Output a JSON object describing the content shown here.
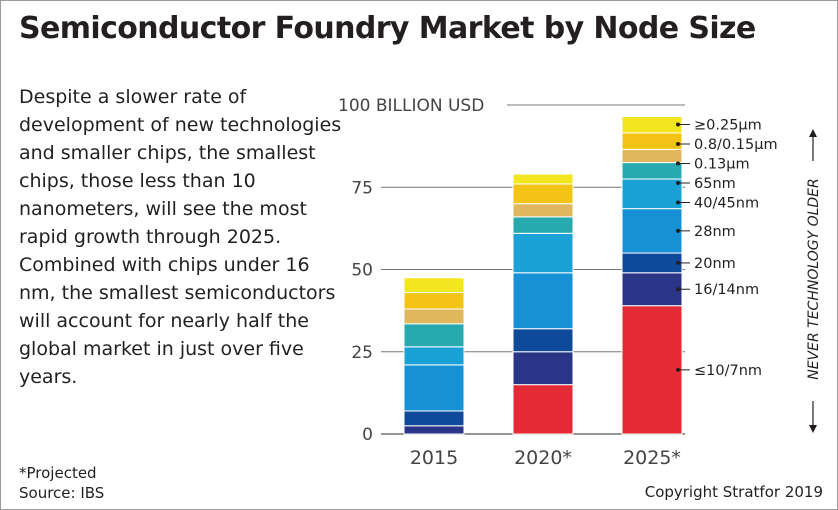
{
  "title": "Semiconductor Foundry Market by Node Size",
  "description": "Despite a slower rate of development of new technologies and smaller chips, the smallest chips, those less than 10 nanometers, will see the most rapid growth through 2025. Combined with chips under 16 nm, the smallest semiconductors will account for nearly half the global market in just over five years.",
  "footnote": "*Projected",
  "source": "Source: IBS",
  "copyright": "Copyright Stratfor 2019",
  "side_label": "NEVER TECHNOLOGY OLDER",
  "colors": {
    "≤10/7nm": "#e32a35",
    "16/14nm": "#2a3588",
    "20nm": "#0e4a99",
    "28nm": "#1791d6",
    "40/45nm": "#1aa1d6",
    "65nm": "#27a9b0",
    "0.13µm": "#e0b75c",
    "0.8/0.15µm": "#f3c315",
    "≥0.25µm": "#f2e61e"
  },
  "chart_data": {
    "type": "bar",
    "stacked": true,
    "categories": [
      "2015",
      "2020*",
      "2025*"
    ],
    "ylim": [
      0,
      100
    ],
    "yticks": [
      {
        "value": 0,
        "label": "0"
      },
      {
        "value": 25,
        "label": "25"
      },
      {
        "value": 50,
        "label": "50"
      },
      {
        "value": 75,
        "label": "75"
      },
      {
        "value": 100,
        "label": "100 BILLION USD"
      }
    ],
    "series": [
      {
        "name": "≤10/7nm",
        "values": [
          0,
          15,
          39
        ]
      },
      {
        "name": "16/14nm",
        "values": [
          2.5,
          10,
          10
        ]
      },
      {
        "name": "20nm",
        "values": [
          4.5,
          7,
          6
        ]
      },
      {
        "name": "28nm",
        "values": [
          14,
          17,
          13.5
        ]
      },
      {
        "name": "40/45nm",
        "values": [
          5.5,
          12,
          9
        ]
      },
      {
        "name": "65nm",
        "values": [
          7,
          5,
          5
        ]
      },
      {
        "name": "0.13µm",
        "values": [
          4.5,
          4,
          4
        ]
      },
      {
        "name": "0.8/0.15µm",
        "values": [
          5,
          6,
          5
        ]
      },
      {
        "name": "≥0.25µm",
        "values": [
          4.5,
          3,
          5
        ]
      }
    ]
  }
}
